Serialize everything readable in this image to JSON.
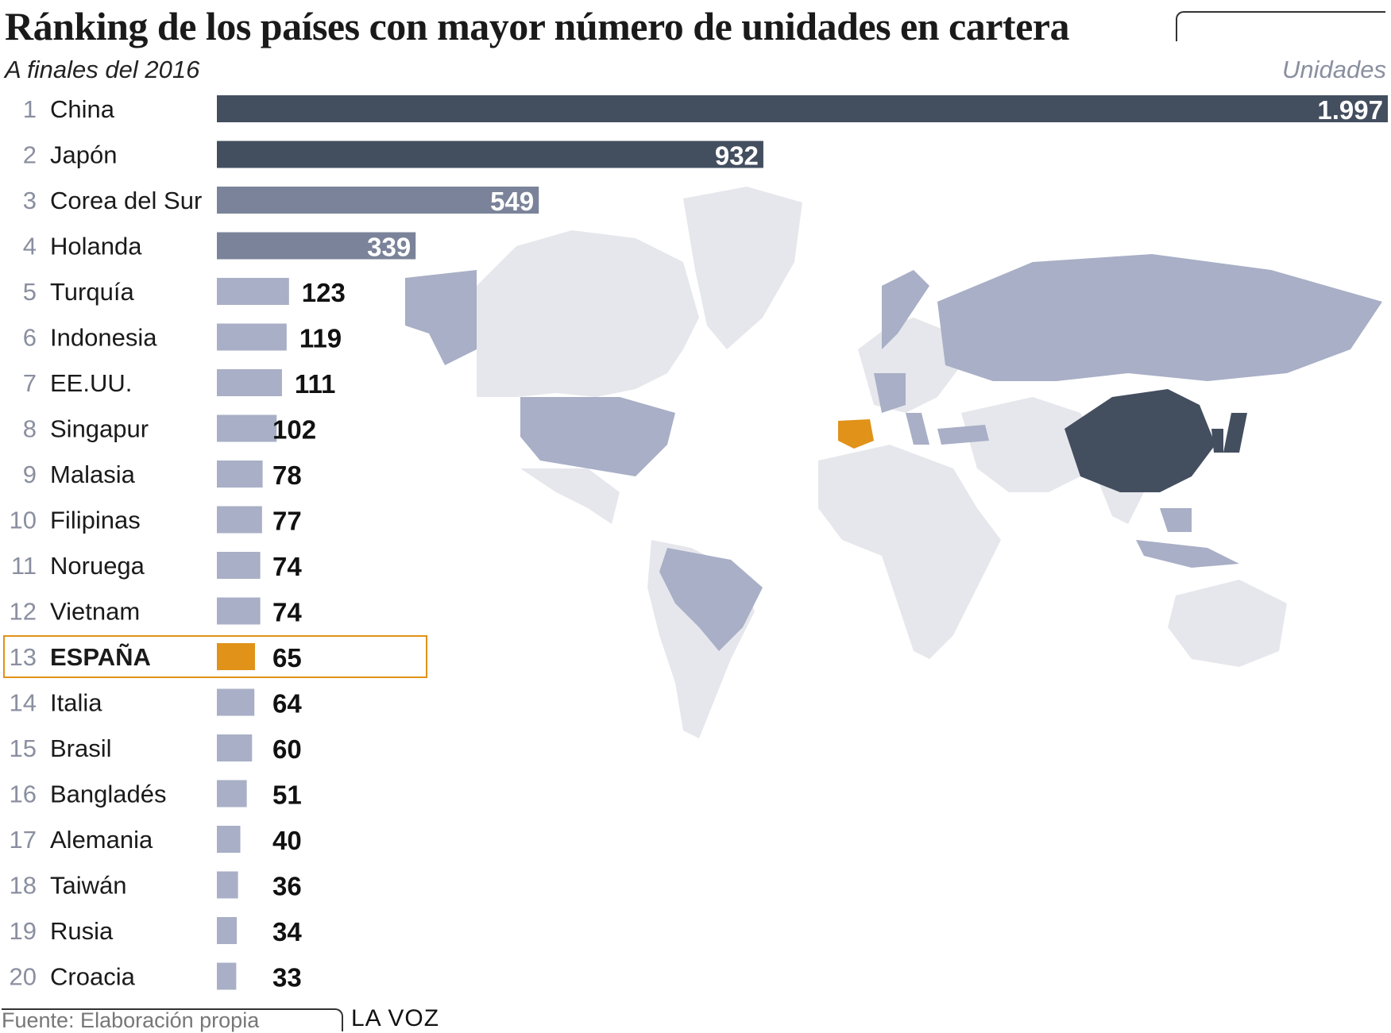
{
  "title": "Ránking de los países con mayor número de unidades en cartera",
  "subtitle": "A finales del 2016",
  "units_label": "Unidades",
  "source": "Fuente: Elaboración propia",
  "brand": "LA VOZ",
  "colors": {
    "dark": "#434e5f",
    "mid": "#7a8399",
    "light": "#a8afc6",
    "highlight": "#e09219",
    "map_land": "#e6e7ec",
    "map_country": "#a8afc6",
    "highlight_box": "#e09219"
  },
  "chart_data": {
    "type": "bar",
    "orientation": "horizontal",
    "title": "Ránking de los países con mayor número de unidades en cartera",
    "subtitle": "A finales del 2016",
    "xlabel": "Unidades",
    "highlight": "ESPAÑA",
    "categories": [
      "China",
      "Japón",
      "Corea del Sur",
      "Holanda",
      "Turquía",
      "Indonesia",
      "EE.UU.",
      "Singapur",
      "Malasia",
      "Filipinas",
      "Noruega",
      "Vietnam",
      "ESPAÑA",
      "Italia",
      "Brasil",
      "Bangladés",
      "Alemania",
      "Taiwán",
      "Rusia",
      "Croacia"
    ],
    "ranks": [
      "1",
      "2",
      "3",
      "4",
      "5",
      "6",
      "7",
      "8",
      "9",
      "10",
      "11",
      "12",
      "13",
      "14",
      "15",
      "16",
      "17",
      "18",
      "19",
      "20"
    ],
    "values": [
      1997,
      932,
      549,
      339,
      123,
      119,
      111,
      102,
      78,
      77,
      74,
      74,
      65,
      64,
      60,
      51,
      40,
      36,
      34,
      33
    ],
    "value_labels": [
      "1.997",
      "932",
      "549",
      "339",
      "123",
      "119",
      "111",
      "102",
      "78",
      "77",
      "74",
      "74",
      "65",
      "64",
      "60",
      "51",
      "40",
      "36",
      "34",
      "33"
    ],
    "xlim": [
      0,
      1997
    ]
  }
}
